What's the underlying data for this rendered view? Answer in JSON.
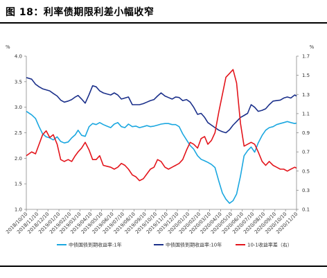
{
  "figure": {
    "title": "图 18：利率债期限利差小幅收窄"
  },
  "chart_data": {
    "type": "line",
    "left_axis": {
      "unit": "%",
      "ylim": [
        1.0,
        4.0
      ],
      "ticks": [
        "1.0",
        "1.5",
        "2.0",
        "2.5",
        "3.0",
        "3.5",
        "4.0"
      ]
    },
    "right_axis": {
      "unit": "%",
      "ylim": [
        0.1,
        1.7
      ],
      "ticks": [
        "0.1",
        "0.3",
        "0.5",
        "0.7",
        "0.9",
        "1.1",
        "1.3",
        "1.5",
        "1.7"
      ]
    },
    "x_range": [
      "2018-10-10",
      "2020-11-10"
    ],
    "x_tick_labels": [
      "2018/10/10",
      "2018/11/10",
      "2018/12/10",
      "2019/01/10",
      "2019/02/10",
      "2019/03/10",
      "2019/04/10",
      "2019/05/10",
      "2019/06/10",
      "2019/07/10",
      "2019/08/10",
      "2019/09/10",
      "2019/10/10",
      "2019/11/10",
      "2019/12/10",
      "2020/01/10",
      "2020/02/10",
      "2020/03/10",
      "2020/04/10",
      "2020/05/10",
      "2020/06/10",
      "2020/07/10",
      "2020/08/10",
      "2020/09/10",
      "2020/10/10",
      "2020/11/10"
    ],
    "grid": false,
    "legend_position": "bottom",
    "series": [
      {
        "name": "中债国债到期收益率:1年",
        "axis": "left",
        "color": "#1AA7E0",
        "points": [
          [
            "2018-10-10",
            2.92
          ],
          [
            "2018-10-25",
            2.85
          ],
          [
            "2018-11-05",
            2.78
          ],
          [
            "2018-11-15",
            2.62
          ],
          [
            "2018-11-25",
            2.48
          ],
          [
            "2018-12-05",
            2.42
          ],
          [
            "2018-12-15",
            2.4
          ],
          [
            "2018-12-25",
            2.36
          ],
          [
            "2019-01-05",
            2.42
          ],
          [
            "2019-01-15",
            2.33
          ],
          [
            "2019-01-25",
            2.3
          ],
          [
            "2019-02-05",
            2.32
          ],
          [
            "2019-02-15",
            2.4
          ],
          [
            "2019-02-25",
            2.46
          ],
          [
            "2019-03-05",
            2.55
          ],
          [
            "2019-03-15",
            2.45
          ],
          [
            "2019-03-25",
            2.43
          ],
          [
            "2019-04-05",
            2.62
          ],
          [
            "2019-04-15",
            2.68
          ],
          [
            "2019-04-25",
            2.66
          ],
          [
            "2019-05-05",
            2.7
          ],
          [
            "2019-05-15",
            2.66
          ],
          [
            "2019-05-25",
            2.63
          ],
          [
            "2019-06-05",
            2.6
          ],
          [
            "2019-06-15",
            2.67
          ],
          [
            "2019-06-25",
            2.7
          ],
          [
            "2019-07-05",
            2.62
          ],
          [
            "2019-07-15",
            2.6
          ],
          [
            "2019-07-25",
            2.67
          ],
          [
            "2019-08-05",
            2.62
          ],
          [
            "2019-08-15",
            2.63
          ],
          [
            "2019-08-25",
            2.6
          ],
          [
            "2019-09-05",
            2.62
          ],
          [
            "2019-09-15",
            2.64
          ],
          [
            "2019-09-25",
            2.62
          ],
          [
            "2019-10-05",
            2.63
          ],
          [
            "2019-10-15",
            2.65
          ],
          [
            "2019-10-25",
            2.67
          ],
          [
            "2019-11-05",
            2.68
          ],
          [
            "2019-11-15",
            2.68
          ],
          [
            "2019-11-25",
            2.66
          ],
          [
            "2019-12-05",
            2.66
          ],
          [
            "2019-12-15",
            2.62
          ],
          [
            "2019-12-25",
            2.48
          ],
          [
            "2020-01-05",
            2.36
          ],
          [
            "2020-01-15",
            2.25
          ],
          [
            "2020-01-25",
            2.18
          ],
          [
            "2020-02-05",
            2.05
          ],
          [
            "2020-02-15",
            1.98
          ],
          [
            "2020-02-25",
            1.95
          ],
          [
            "2020-03-05",
            1.92
          ],
          [
            "2020-03-15",
            1.88
          ],
          [
            "2020-03-25",
            1.82
          ],
          [
            "2020-04-05",
            1.55
          ],
          [
            "2020-04-15",
            1.32
          ],
          [
            "2020-04-25",
            1.2
          ],
          [
            "2020-05-05",
            1.12
          ],
          [
            "2020-05-15",
            1.17
          ],
          [
            "2020-05-25",
            1.3
          ],
          [
            "2020-06-05",
            1.65
          ],
          [
            "2020-06-15",
            2.05
          ],
          [
            "2020-06-25",
            2.15
          ],
          [
            "2020-07-05",
            2.22
          ],
          [
            "2020-07-15",
            2.12
          ],
          [
            "2020-07-25",
            2.3
          ],
          [
            "2020-08-05",
            2.45
          ],
          [
            "2020-08-15",
            2.55
          ],
          [
            "2020-08-25",
            2.6
          ],
          [
            "2020-09-05",
            2.62
          ],
          [
            "2020-09-15",
            2.66
          ],
          [
            "2020-09-25",
            2.68
          ],
          [
            "2020-10-05",
            2.7
          ],
          [
            "2020-10-15",
            2.72
          ],
          [
            "2020-10-25",
            2.7
          ],
          [
            "2020-11-05",
            2.68
          ],
          [
            "2020-11-10",
            2.69
          ]
        ]
      },
      {
        "name": "中债国债到期收益率:10年",
        "axis": "left",
        "color": "#1A2F8A",
        "points": [
          [
            "2018-10-10",
            3.58
          ],
          [
            "2018-10-25",
            3.55
          ],
          [
            "2018-11-05",
            3.45
          ],
          [
            "2018-11-15",
            3.4
          ],
          [
            "2018-11-25",
            3.36
          ],
          [
            "2018-12-05",
            3.34
          ],
          [
            "2018-12-15",
            3.32
          ],
          [
            "2018-12-25",
            3.27
          ],
          [
            "2019-01-05",
            3.22
          ],
          [
            "2019-01-15",
            3.14
          ],
          [
            "2019-01-25",
            3.1
          ],
          [
            "2019-02-05",
            3.12
          ],
          [
            "2019-02-15",
            3.15
          ],
          [
            "2019-02-25",
            3.2
          ],
          [
            "2019-03-05",
            3.23
          ],
          [
            "2019-03-15",
            3.16
          ],
          [
            "2019-03-25",
            3.08
          ],
          [
            "2019-04-05",
            3.25
          ],
          [
            "2019-04-15",
            3.42
          ],
          [
            "2019-04-25",
            3.4
          ],
          [
            "2019-05-05",
            3.32
          ],
          [
            "2019-05-15",
            3.28
          ],
          [
            "2019-05-25",
            3.26
          ],
          [
            "2019-06-05",
            3.24
          ],
          [
            "2019-06-15",
            3.28
          ],
          [
            "2019-06-25",
            3.24
          ],
          [
            "2019-07-05",
            3.16
          ],
          [
            "2019-07-15",
            3.18
          ],
          [
            "2019-07-25",
            3.2
          ],
          [
            "2019-08-05",
            3.05
          ],
          [
            "2019-08-15",
            3.05
          ],
          [
            "2019-08-25",
            3.05
          ],
          [
            "2019-09-05",
            3.07
          ],
          [
            "2019-09-15",
            3.1
          ],
          [
            "2019-09-25",
            3.13
          ],
          [
            "2019-10-05",
            3.15
          ],
          [
            "2019-10-15",
            3.22
          ],
          [
            "2019-10-25",
            3.28
          ],
          [
            "2019-11-05",
            3.22
          ],
          [
            "2019-11-15",
            3.19
          ],
          [
            "2019-11-25",
            3.16
          ],
          [
            "2019-12-05",
            3.2
          ],
          [
            "2019-12-15",
            3.19
          ],
          [
            "2019-12-25",
            3.13
          ],
          [
            "2020-01-05",
            3.15
          ],
          [
            "2020-01-15",
            3.1
          ],
          [
            "2020-01-25",
            3.0
          ],
          [
            "2020-02-05",
            2.86
          ],
          [
            "2020-02-15",
            2.88
          ],
          [
            "2020-02-25",
            2.8
          ],
          [
            "2020-03-05",
            2.7
          ],
          [
            "2020-03-15",
            2.65
          ],
          [
            "2020-03-25",
            2.6
          ],
          [
            "2020-04-05",
            2.55
          ],
          [
            "2020-04-15",
            2.52
          ],
          [
            "2020-04-25",
            2.5
          ],
          [
            "2020-05-05",
            2.56
          ],
          [
            "2020-05-15",
            2.65
          ],
          [
            "2020-05-25",
            2.72
          ],
          [
            "2020-06-05",
            2.8
          ],
          [
            "2020-06-15",
            2.84
          ],
          [
            "2020-06-25",
            2.88
          ],
          [
            "2020-07-05",
            3.05
          ],
          [
            "2020-07-15",
            3.0
          ],
          [
            "2020-07-25",
            2.92
          ],
          [
            "2020-08-05",
            2.94
          ],
          [
            "2020-08-15",
            2.97
          ],
          [
            "2020-08-25",
            3.05
          ],
          [
            "2020-09-05",
            3.12
          ],
          [
            "2020-09-15",
            3.13
          ],
          [
            "2020-09-25",
            3.14
          ],
          [
            "2020-10-05",
            3.18
          ],
          [
            "2020-10-15",
            3.2
          ],
          [
            "2020-10-25",
            3.18
          ],
          [
            "2020-11-05",
            3.24
          ],
          [
            "2020-11-10",
            3.22
          ]
        ]
      },
      {
        "name": "10-1收益率差（右）",
        "axis": "right",
        "color": "#E3141B",
        "points": [
          [
            "2018-10-10",
            0.66
          ],
          [
            "2018-10-25",
            0.7
          ],
          [
            "2018-11-05",
            0.68
          ],
          [
            "2018-11-15",
            0.78
          ],
          [
            "2018-11-25",
            0.88
          ],
          [
            "2018-12-05",
            0.92
          ],
          [
            "2018-12-15",
            0.85
          ],
          [
            "2018-12-25",
            0.88
          ],
          [
            "2019-01-05",
            0.78
          ],
          [
            "2019-01-15",
            0.62
          ],
          [
            "2019-01-25",
            0.6
          ],
          [
            "2019-02-05",
            0.62
          ],
          [
            "2019-02-15",
            0.6
          ],
          [
            "2019-02-25",
            0.66
          ],
          [
            "2019-03-05",
            0.7
          ],
          [
            "2019-03-15",
            0.74
          ],
          [
            "2019-03-25",
            0.8
          ],
          [
            "2019-04-05",
            0.72
          ],
          [
            "2019-04-15",
            0.62
          ],
          [
            "2019-04-25",
            0.62
          ],
          [
            "2019-05-05",
            0.66
          ],
          [
            "2019-05-15",
            0.56
          ],
          [
            "2019-05-25",
            0.55
          ],
          [
            "2019-06-05",
            0.54
          ],
          [
            "2019-06-15",
            0.52
          ],
          [
            "2019-06-25",
            0.54
          ],
          [
            "2019-07-05",
            0.58
          ],
          [
            "2019-07-15",
            0.56
          ],
          [
            "2019-07-25",
            0.52
          ],
          [
            "2019-08-05",
            0.46
          ],
          [
            "2019-08-15",
            0.44
          ],
          [
            "2019-08-25",
            0.4
          ],
          [
            "2019-09-05",
            0.42
          ],
          [
            "2019-09-15",
            0.47
          ],
          [
            "2019-09-25",
            0.52
          ],
          [
            "2019-10-05",
            0.54
          ],
          [
            "2019-10-15",
            0.62
          ],
          [
            "2019-10-25",
            0.6
          ],
          [
            "2019-11-05",
            0.54
          ],
          [
            "2019-11-15",
            0.52
          ],
          [
            "2019-11-25",
            0.54
          ],
          [
            "2019-12-05",
            0.56
          ],
          [
            "2019-12-15",
            0.58
          ],
          [
            "2019-12-25",
            0.62
          ],
          [
            "2020-01-05",
            0.72
          ],
          [
            "2020-01-15",
            0.8
          ],
          [
            "2020-01-25",
            0.78
          ],
          [
            "2020-02-05",
            0.74
          ],
          [
            "2020-02-15",
            0.84
          ],
          [
            "2020-02-25",
            0.86
          ],
          [
            "2020-03-05",
            0.78
          ],
          [
            "2020-03-15",
            0.82
          ],
          [
            "2020-03-25",
            0.9
          ],
          [
            "2020-04-05",
            1.12
          ],
          [
            "2020-04-15",
            1.3
          ],
          [
            "2020-04-25",
            1.48
          ],
          [
            "2020-05-05",
            1.52
          ],
          [
            "2020-05-15",
            1.56
          ],
          [
            "2020-05-25",
            1.42
          ],
          [
            "2020-06-05",
            1.0
          ],
          [
            "2020-06-15",
            0.76
          ],
          [
            "2020-06-25",
            0.78
          ],
          [
            "2020-07-05",
            0.8
          ],
          [
            "2020-07-15",
            0.78
          ],
          [
            "2020-07-25",
            0.7
          ],
          [
            "2020-08-05",
            0.6
          ],
          [
            "2020-08-15",
            0.56
          ],
          [
            "2020-08-25",
            0.6
          ],
          [
            "2020-09-05",
            0.56
          ],
          [
            "2020-09-15",
            0.54
          ],
          [
            "2020-09-25",
            0.52
          ],
          [
            "2020-10-05",
            0.52
          ],
          [
            "2020-10-15",
            0.5
          ],
          [
            "2020-10-25",
            0.52
          ],
          [
            "2020-11-05",
            0.54
          ],
          [
            "2020-11-10",
            0.53
          ]
        ]
      }
    ]
  }
}
